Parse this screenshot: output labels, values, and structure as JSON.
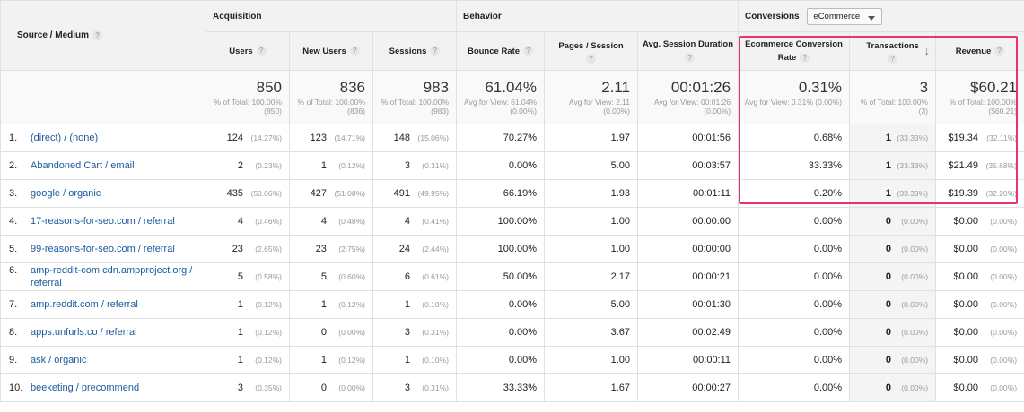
{
  "header": {
    "source_medium": "Source / Medium",
    "groups": {
      "acquisition": "Acquisition",
      "behavior": "Behavior",
      "conversions": "Conversions"
    },
    "conversion_dropdown": "eCommerce",
    "help_icon": "?",
    "columns": {
      "users": "Users",
      "new_users": "New Users",
      "sessions": "Sessions",
      "bounce_rate": "Bounce Rate",
      "pages_session": "Pages / Session",
      "avg_duration": "Avg. Session Duration",
      "ecom_rate": "Ecommerce Conversion Rate",
      "transactions": "Transactions",
      "revenue": "Revenue"
    },
    "sort_icon": "arrow-down-icon"
  },
  "totals": {
    "users": {
      "value": "850",
      "sub": "% of Total: 100.00% (850)"
    },
    "new_users": {
      "value": "836",
      "sub": "% of Total: 100.00% (836)"
    },
    "sessions": {
      "value": "983",
      "sub": "% of Total: 100.00% (983)"
    },
    "bounce_rate": {
      "value": "61.04%",
      "sub": "Avg for View: 61.04% (0.00%)"
    },
    "pages_session": {
      "value": "2.11",
      "sub": "Avg for View: 2.11 (0.00%)"
    },
    "avg_duration": {
      "value": "00:01:26",
      "sub": "Avg for View: 00:01:26 (0.00%)"
    },
    "ecom_rate": {
      "value": "0.31%",
      "sub": "Avg for View: 0.31% (0.00%)"
    },
    "transactions": {
      "value": "3",
      "sub": "% of Total: 100.00% (3)"
    },
    "revenue": {
      "value": "$60.21",
      "sub": "% of Total: 100.00% ($60.21)"
    }
  },
  "rows": [
    {
      "idx": "1.",
      "source": "(direct) / (none)",
      "users": "124",
      "users_pct": "(14.27%)",
      "new_users": "123",
      "new_users_pct": "(14.71%)",
      "sessions": "148",
      "sessions_pct": "(15.06%)",
      "bounce": "70.27%",
      "pps": "1.97",
      "dur": "00:01:56",
      "ecr": "0.68%",
      "tx": "1",
      "tx_pct": "(33.33%)",
      "rev": "$19.34",
      "rev_pct": "(32.11%)"
    },
    {
      "idx": "2.",
      "source": "Abandoned Cart / email",
      "users": "2",
      "users_pct": "(0.23%)",
      "new_users": "1",
      "new_users_pct": "(0.12%)",
      "sessions": "3",
      "sessions_pct": "(0.31%)",
      "bounce": "0.00%",
      "pps": "5.00",
      "dur": "00:03:57",
      "ecr": "33.33%",
      "tx": "1",
      "tx_pct": "(33.33%)",
      "rev": "$21.49",
      "rev_pct": "(35.68%)"
    },
    {
      "idx": "3.",
      "source": "google / organic",
      "users": "435",
      "users_pct": "(50.06%)",
      "new_users": "427",
      "new_users_pct": "(51.08%)",
      "sessions": "491",
      "sessions_pct": "(49.95%)",
      "bounce": "66.19%",
      "pps": "1.93",
      "dur": "00:01:11",
      "ecr": "0.20%",
      "tx": "1",
      "tx_pct": "(33.33%)",
      "rev": "$19.39",
      "rev_pct": "(32.20%)"
    },
    {
      "idx": "4.",
      "source": "17-reasons-for-seo.com / referral",
      "users": "4",
      "users_pct": "(0.46%)",
      "new_users": "4",
      "new_users_pct": "(0.48%)",
      "sessions": "4",
      "sessions_pct": "(0.41%)",
      "bounce": "100.00%",
      "pps": "1.00",
      "dur": "00:00:00",
      "ecr": "0.00%",
      "tx": "0",
      "tx_pct": "(0.00%)",
      "rev": "$0.00",
      "rev_pct": "(0.00%)"
    },
    {
      "idx": "5.",
      "source": "99-reasons-for-seo.com / referral",
      "users": "23",
      "users_pct": "(2.65%)",
      "new_users": "23",
      "new_users_pct": "(2.75%)",
      "sessions": "24",
      "sessions_pct": "(2.44%)",
      "bounce": "100.00%",
      "pps": "1.00",
      "dur": "00:00:00",
      "ecr": "0.00%",
      "tx": "0",
      "tx_pct": "(0.00%)",
      "rev": "$0.00",
      "rev_pct": "(0.00%)"
    },
    {
      "idx": "6.",
      "source": "amp-reddit-com.cdn.ampproject.org / referral",
      "users": "5",
      "users_pct": "(0.58%)",
      "new_users": "5",
      "new_users_pct": "(0.60%)",
      "sessions": "6",
      "sessions_pct": "(0.61%)",
      "bounce": "50.00%",
      "pps": "2.17",
      "dur": "00:00:21",
      "ecr": "0.00%",
      "tx": "0",
      "tx_pct": "(0.00%)",
      "rev": "$0.00",
      "rev_pct": "(0.00%)"
    },
    {
      "idx": "7.",
      "source": "amp.reddit.com / referral",
      "users": "1",
      "users_pct": "(0.12%)",
      "new_users": "1",
      "new_users_pct": "(0.12%)",
      "sessions": "1",
      "sessions_pct": "(0.10%)",
      "bounce": "0.00%",
      "pps": "5.00",
      "dur": "00:01:30",
      "ecr": "0.00%",
      "tx": "0",
      "tx_pct": "(0.00%)",
      "rev": "$0.00",
      "rev_pct": "(0.00%)"
    },
    {
      "idx": "8.",
      "source": "apps.unfurls.co / referral",
      "users": "1",
      "users_pct": "(0.12%)",
      "new_users": "0",
      "new_users_pct": "(0.00%)",
      "sessions": "3",
      "sessions_pct": "(0.31%)",
      "bounce": "0.00%",
      "pps": "3.67",
      "dur": "00:02:49",
      "ecr": "0.00%",
      "tx": "0",
      "tx_pct": "(0.00%)",
      "rev": "$0.00",
      "rev_pct": "(0.00%)"
    },
    {
      "idx": "9.",
      "source": "ask / organic",
      "users": "1",
      "users_pct": "(0.12%)",
      "new_users": "1",
      "new_users_pct": "(0.12%)",
      "sessions": "1",
      "sessions_pct": "(0.10%)",
      "bounce": "0.00%",
      "pps": "1.00",
      "dur": "00:00:11",
      "ecr": "0.00%",
      "tx": "0",
      "tx_pct": "(0.00%)",
      "rev": "$0.00",
      "rev_pct": "(0.00%)"
    },
    {
      "idx": "10.",
      "source": "beeketing / precommend",
      "users": "3",
      "users_pct": "(0.35%)",
      "new_users": "0",
      "new_users_pct": "(0.00%)",
      "sessions": "3",
      "sessions_pct": "(0.31%)",
      "bounce": "33.33%",
      "pps": "1.67",
      "dur": "00:00:27",
      "ecr": "0.00%",
      "tx": "0",
      "tx_pct": "(0.00%)",
      "rev": "$0.00",
      "rev_pct": "(0.00%)"
    }
  ]
}
